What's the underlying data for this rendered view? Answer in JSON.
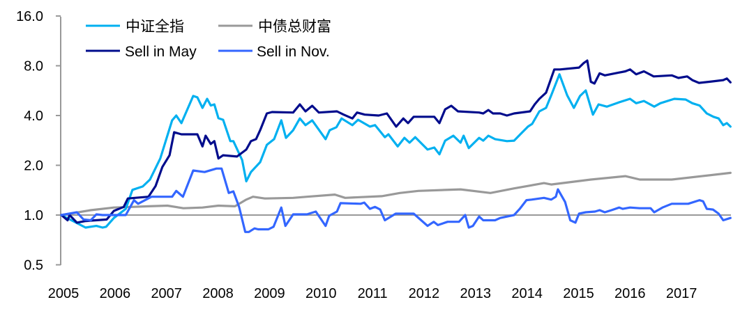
{
  "chart_data": {
    "type": "line",
    "title": "",
    "xlabel": "",
    "ylabel": "",
    "yscale": "log2",
    "ylim": [
      0.5,
      16.0
    ],
    "xlim": [
      2005,
      2018
    ],
    "yticks": [
      "0.5",
      "1.0",
      "2.0",
      "4.0",
      "8.0",
      "16.0"
    ],
    "ytick_values": [
      0.5,
      1,
      2,
      4,
      8,
      16
    ],
    "xticks": [
      "2005",
      "2006",
      "2007",
      "2008",
      "2009",
      "2010",
      "2011",
      "2012",
      "2013",
      "2014",
      "2015",
      "2016",
      "2017"
    ],
    "xtick_values": [
      2005,
      2006,
      2007,
      2008,
      2009,
      2010,
      2011,
      2012,
      2013,
      2014,
      2015,
      2016,
      2017
    ],
    "reference_line": 1.0,
    "legend_position": "top-left",
    "series": [
      {
        "name": "中证全指",
        "color": "#00B0F0",
        "x": [
          2005.0,
          2005.47,
          2005.57,
          2005.68,
          2005.8,
          2005.87,
          2006.02,
          2006.25,
          2006.38,
          2006.58,
          2006.72,
          2006.92,
          2007.15,
          2007.23,
          2007.33,
          2007.56,
          2007.64,
          2007.74,
          2007.83,
          2007.9,
          2007.97,
          2008.05,
          2008.14,
          2008.28,
          2008.34,
          2008.51,
          2008.59,
          2008.68,
          2008.86,
          2008.99,
          2009.13,
          2009.27,
          2009.36,
          2009.5,
          2009.63,
          2009.74,
          2009.87,
          2010.13,
          2010.21,
          2010.34,
          2010.44,
          2010.65,
          2010.76,
          2010.99,
          2011.09,
          2011.28,
          2011.35,
          2011.53,
          2011.66,
          2011.76,
          2011.87,
          2012.11,
          2012.24,
          2012.34,
          2012.45,
          2012.61,
          2012.75,
          2012.81,
          2012.91,
          2013.11,
          2013.19,
          2013.29,
          2013.42,
          2013.65,
          2013.79,
          2013.92,
          2014.06,
          2014.14,
          2014.28,
          2014.41,
          2014.51,
          2014.67,
          2014.82,
          2014.95,
          2015.07,
          2015.18,
          2015.32,
          2015.43,
          2015.59,
          2015.82,
          2016.04,
          2016.16,
          2016.31,
          2016.51,
          2016.63,
          2016.9,
          2017.12,
          2017.25,
          2017.39,
          2017.53,
          2017.66,
          2017.76,
          2017.85,
          2017.92,
          2017.99
        ],
        "values": [
          1.0,
          0.84,
          0.85,
          0.86,
          0.84,
          0.85,
          0.96,
          1.09,
          1.42,
          1.49,
          1.64,
          2.2,
          3.74,
          4.0,
          3.6,
          5.25,
          5.15,
          4.45,
          5.05,
          4.6,
          4.67,
          3.85,
          3.77,
          2.8,
          2.8,
          2.15,
          1.6,
          1.82,
          2.09,
          2.66,
          2.88,
          3.74,
          2.93,
          3.26,
          3.84,
          3.5,
          3.74,
          2.88,
          3.26,
          3.4,
          3.84,
          3.5,
          3.77,
          3.43,
          3.5,
          2.96,
          3.08,
          2.6,
          2.93,
          2.74,
          2.96,
          2.49,
          2.56,
          2.33,
          2.82,
          3.02,
          2.74,
          3.02,
          2.54,
          2.93,
          2.82,
          3.02,
          2.88,
          2.8,
          2.82,
          3.1,
          3.43,
          3.56,
          4.24,
          4.45,
          5.3,
          7.1,
          5.3,
          4.45,
          5.25,
          5.67,
          4.05,
          4.67,
          4.53,
          4.8,
          5.05,
          4.75,
          4.9,
          4.53,
          4.75,
          5.05,
          5.0,
          4.75,
          4.6,
          4.12,
          3.93,
          3.84,
          3.5,
          3.6,
          3.43
        ]
      },
      {
        "name": "中债总财富",
        "color": "#999999",
        "x": [
          2005.0,
          2005.57,
          2006.02,
          2006.38,
          2006.69,
          2007.06,
          2007.37,
          2007.74,
          2008.05,
          2008.37,
          2008.59,
          2008.72,
          2008.95,
          2009.5,
          2009.77,
          2010.31,
          2010.51,
          2011.22,
          2011.57,
          2011.93,
          2012.75,
          2013.33,
          2013.79,
          2014.37,
          2014.51,
          2015.28,
          2015.95,
          2016.23,
          2016.85,
          2017.99
        ],
        "values": [
          1.0,
          1.07,
          1.11,
          1.12,
          1.13,
          1.14,
          1.1,
          1.11,
          1.14,
          1.13,
          1.24,
          1.29,
          1.26,
          1.27,
          1.29,
          1.33,
          1.27,
          1.3,
          1.36,
          1.4,
          1.43,
          1.36,
          1.45,
          1.56,
          1.53,
          1.64,
          1.72,
          1.64,
          1.64,
          1.8
        ]
      },
      {
        "name": "Sell in May",
        "color": "#000C8C",
        "x": [
          2005.0,
          2005.12,
          2005.16,
          2005.3,
          2005.47,
          2005.88,
          2006.02,
          2006.21,
          2006.29,
          2006.69,
          2006.83,
          2006.96,
          2007.1,
          2007.19,
          2007.33,
          2007.64,
          2007.74,
          2007.8,
          2007.9,
          2007.97,
          2008.05,
          2008.14,
          2008.41,
          2008.59,
          2008.68,
          2008.78,
          2008.86,
          2008.99,
          2009.09,
          2009.5,
          2009.63,
          2009.74,
          2009.87,
          2010.0,
          2010.35,
          2010.48,
          2010.65,
          2010.74,
          2010.89,
          2011.16,
          2011.32,
          2011.5,
          2011.64,
          2011.73,
          2011.84,
          2012.24,
          2012.34,
          2012.45,
          2012.57,
          2012.7,
          2013.11,
          2013.19,
          2013.29,
          2013.38,
          2013.52,
          2013.65,
          2013.79,
          2014.1,
          2014.19,
          2014.28,
          2014.41,
          2014.57,
          2014.68,
          2015.05,
          2015.14,
          2015.21,
          2015.28,
          2015.35,
          2015.45,
          2015.55,
          2015.95,
          2016.04,
          2016.16,
          2016.31,
          2016.5,
          2016.85,
          2016.98,
          2017.15,
          2017.25,
          2017.38,
          2017.58,
          2017.85,
          2017.92,
          2017.99
        ],
        "values": [
          1.0,
          0.93,
          1.0,
          0.9,
          0.92,
          0.94,
          1.06,
          1.12,
          1.26,
          1.29,
          1.5,
          1.95,
          2.3,
          3.17,
          3.08,
          3.08,
          2.6,
          3.02,
          2.69,
          2.8,
          2.2,
          2.3,
          2.26,
          2.49,
          2.8,
          2.88,
          3.26,
          4.12,
          4.2,
          4.17,
          4.67,
          4.24,
          4.58,
          4.17,
          4.24,
          4.05,
          3.84,
          4.17,
          4.05,
          4.0,
          4.12,
          3.43,
          3.84,
          3.6,
          3.93,
          3.93,
          3.6,
          4.36,
          4.58,
          4.24,
          4.17,
          4.12,
          4.32,
          4.12,
          4.12,
          4.0,
          4.12,
          4.24,
          4.67,
          5.05,
          5.5,
          7.6,
          7.6,
          7.8,
          8.3,
          8.6,
          6.4,
          6.25,
          7.2,
          7.0,
          7.4,
          7.6,
          7.1,
          7.4,
          6.9,
          7.0,
          6.75,
          6.9,
          6.55,
          6.3,
          6.4,
          6.55,
          6.7,
          6.35
        ]
      },
      {
        "name": "Sell in Nov.",
        "color": "#3366FF",
        "x": [
          2005.0,
          2005.3,
          2005.43,
          2005.57,
          2005.68,
          2005.8,
          2006.25,
          2006.41,
          2006.49,
          2006.75,
          2007.15,
          2007.23,
          2007.36,
          2007.56,
          2007.78,
          2008.01,
          2008.11,
          2008.25,
          2008.34,
          2008.45,
          2008.57,
          2008.64,
          2008.75,
          2008.82,
          2009.02,
          2009.12,
          2009.27,
          2009.35,
          2009.5,
          2009.77,
          2009.81,
          2009.94,
          2010.13,
          2010.2,
          2010.35,
          2010.42,
          2010.81,
          2010.88,
          2010.99,
          2011.09,
          2011.19,
          2011.28,
          2011.49,
          2011.84,
          2012.11,
          2012.23,
          2012.31,
          2012.5,
          2012.72,
          2012.84,
          2012.91,
          2012.99,
          2013.11,
          2013.19,
          2013.42,
          2013.52,
          2013.79,
          2013.9,
          2014.03,
          2014.13,
          2014.37,
          2014.51,
          2014.6,
          2014.64,
          2014.78,
          2014.88,
          2014.98,
          2015.05,
          2015.18,
          2015.36,
          2015.45,
          2015.55,
          2015.68,
          2015.83,
          2015.9,
          2016.04,
          2016.23,
          2016.44,
          2016.51,
          2016.67,
          2016.85,
          2017.17,
          2017.39,
          2017.46,
          2017.53,
          2017.65,
          2017.76,
          2017.85,
          2017.99
        ],
        "values": [
          1.0,
          1.04,
          0.94,
          0.93,
          1.01,
          1.0,
          1.0,
          1.23,
          1.17,
          1.29,
          1.29,
          1.4,
          1.29,
          1.86,
          1.82,
          1.91,
          1.91,
          1.36,
          1.39,
          1.12,
          0.79,
          0.79,
          0.83,
          0.82,
          0.82,
          0.85,
          1.11,
          0.86,
          1.01,
          1.01,
          1.02,
          1.05,
          0.86,
          0.99,
          1.05,
          1.18,
          1.17,
          1.19,
          1.09,
          1.12,
          1.08,
          0.93,
          1.02,
          1.02,
          0.86,
          0.91,
          0.87,
          0.91,
          0.91,
          1.0,
          0.84,
          0.86,
          0.98,
          0.93,
          0.93,
          0.96,
          1.0,
          1.09,
          1.23,
          1.24,
          1.27,
          1.24,
          1.29,
          1.43,
          1.2,
          0.93,
          0.9,
          1.02,
          1.04,
          1.05,
          1.07,
          1.04,
          1.07,
          1.11,
          1.09,
          1.11,
          1.1,
          1.1,
          1.04,
          1.11,
          1.17,
          1.17,
          1.23,
          1.21,
          1.09,
          1.08,
          1.02,
          0.93,
          0.96
        ]
      }
    ]
  }
}
